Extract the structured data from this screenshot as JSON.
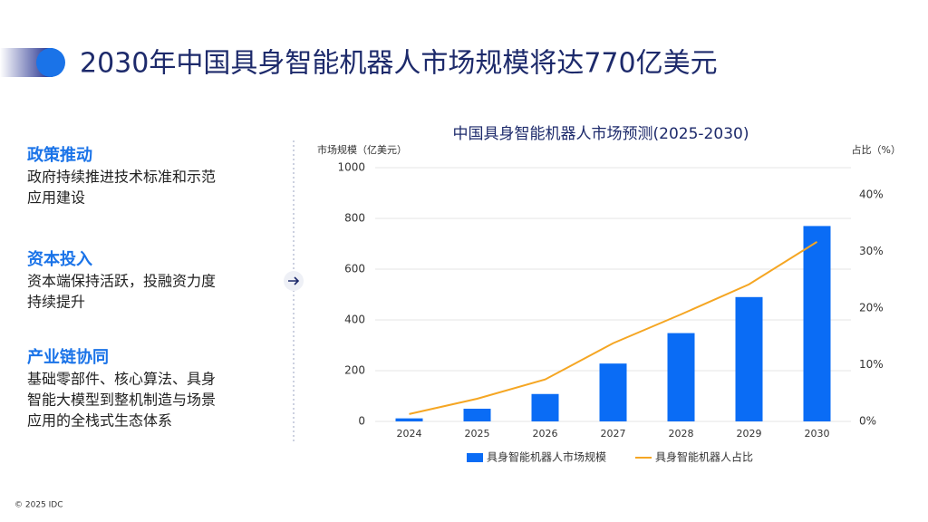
{
  "header": {
    "title": "2030年中国具身智能机器人市场规模将达770亿美元"
  },
  "sections": [
    {
      "heading": "政策推动",
      "lines": [
        "政府持续推进技术标准和示范",
        "应用建设"
      ]
    },
    {
      "heading": "资本投入",
      "lines": [
        "资本端保持活跃，投融资力度",
        "持续提升"
      ]
    },
    {
      "heading": "产业链协同",
      "lines": [
        "基础零部件、核心算法、具身",
        "智能大模型到整机制造与场景",
        "应用的全栈式生态体系"
      ]
    }
  ],
  "footer": {
    "copyright": "© 2025 IDC"
  },
  "chart_data": {
    "type": "bar",
    "title": "中国具身智能机器人市场预测(2025-2030)",
    "y_label": "市场规模（亿美元）",
    "y2_label": "占比（%）",
    "categories": [
      "2024",
      "2025",
      "2026",
      "2027",
      "2028",
      "2029",
      "2030"
    ],
    "series": [
      {
        "name": "具身智能机器人市场规模",
        "color": "#0a6cf5",
        "type": "bar",
        "values": [
          12,
          50,
          108,
          228,
          348,
          490,
          770
        ]
      },
      {
        "name": "具身智能机器人占比",
        "color": "#f5a623",
        "type": "line",
        "axis": "y2",
        "values": [
          1.3,
          4.0,
          7.4,
          13.8,
          18.9,
          24.2,
          31.7
        ]
      }
    ],
    "ylim": [
      0,
      1000
    ],
    "yticks": [
      0,
      200,
      400,
      600,
      800,
      1000
    ],
    "y2lim": [
      0,
      44.8
    ],
    "y2ticks": [
      {
        "value": 0,
        "label": "0%"
      },
      {
        "value": 10,
        "label": "10%"
      },
      {
        "value": 20,
        "label": "20%"
      },
      {
        "value": 30,
        "label": "30%"
      },
      {
        "value": 40,
        "label": "40%"
      }
    ],
    "grid": true,
    "legend": "bottom"
  }
}
